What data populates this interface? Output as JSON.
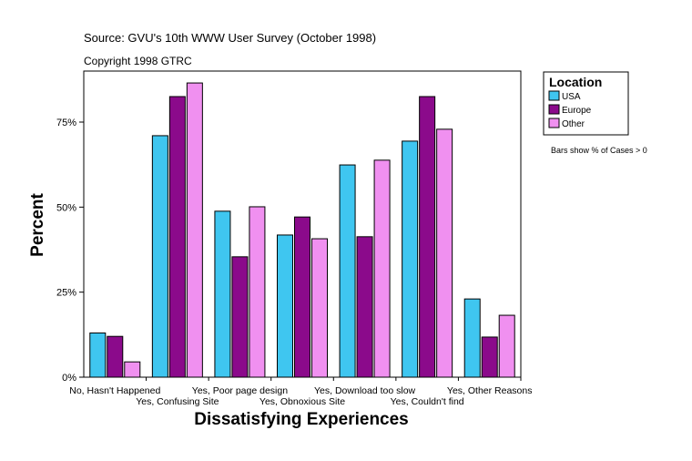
{
  "chart_data": {
    "type": "bar",
    "source": "Source: GVU's 10th WWW User Survey (October 1998)",
    "copyright": "Copyright 1998 GTRC",
    "xlabel": "Dissatisfying Experiences",
    "ylabel": "Percent",
    "legend_title": "Location",
    "note": "Bars show % of Cases > 0",
    "categories": [
      "No, Hasn't Happened",
      "Yes, Confusing Site",
      "Yes, Poor page design",
      "Yes, Obnoxious Site",
      "Yes, Download too slow",
      "Yes, Couldn't find",
      "Yes, Other Reasons"
    ],
    "series": [
      {
        "name": "USA",
        "color": "#3fc6f0",
        "values": [
          13,
          71,
          48.8,
          41.8,
          62.4,
          69.4,
          23
        ]
      },
      {
        "name": "Europe",
        "color": "#8b0a8b",
        "values": [
          12,
          82.5,
          35.4,
          47.1,
          41.3,
          82.5,
          11.8
        ]
      },
      {
        "name": "Other",
        "color": "#f090f0",
        "values": [
          4.5,
          86.5,
          50.1,
          40.7,
          63.8,
          72.9,
          18.2
        ]
      }
    ],
    "ylim": [
      0,
      90
    ],
    "yticks": [
      {
        "value": 0,
        "label": "0%"
      },
      {
        "value": 25,
        "label": "25%"
      },
      {
        "value": 50,
        "label": "50%"
      },
      {
        "value": 75,
        "label": "75%"
      }
    ],
    "legend_position": "right"
  }
}
